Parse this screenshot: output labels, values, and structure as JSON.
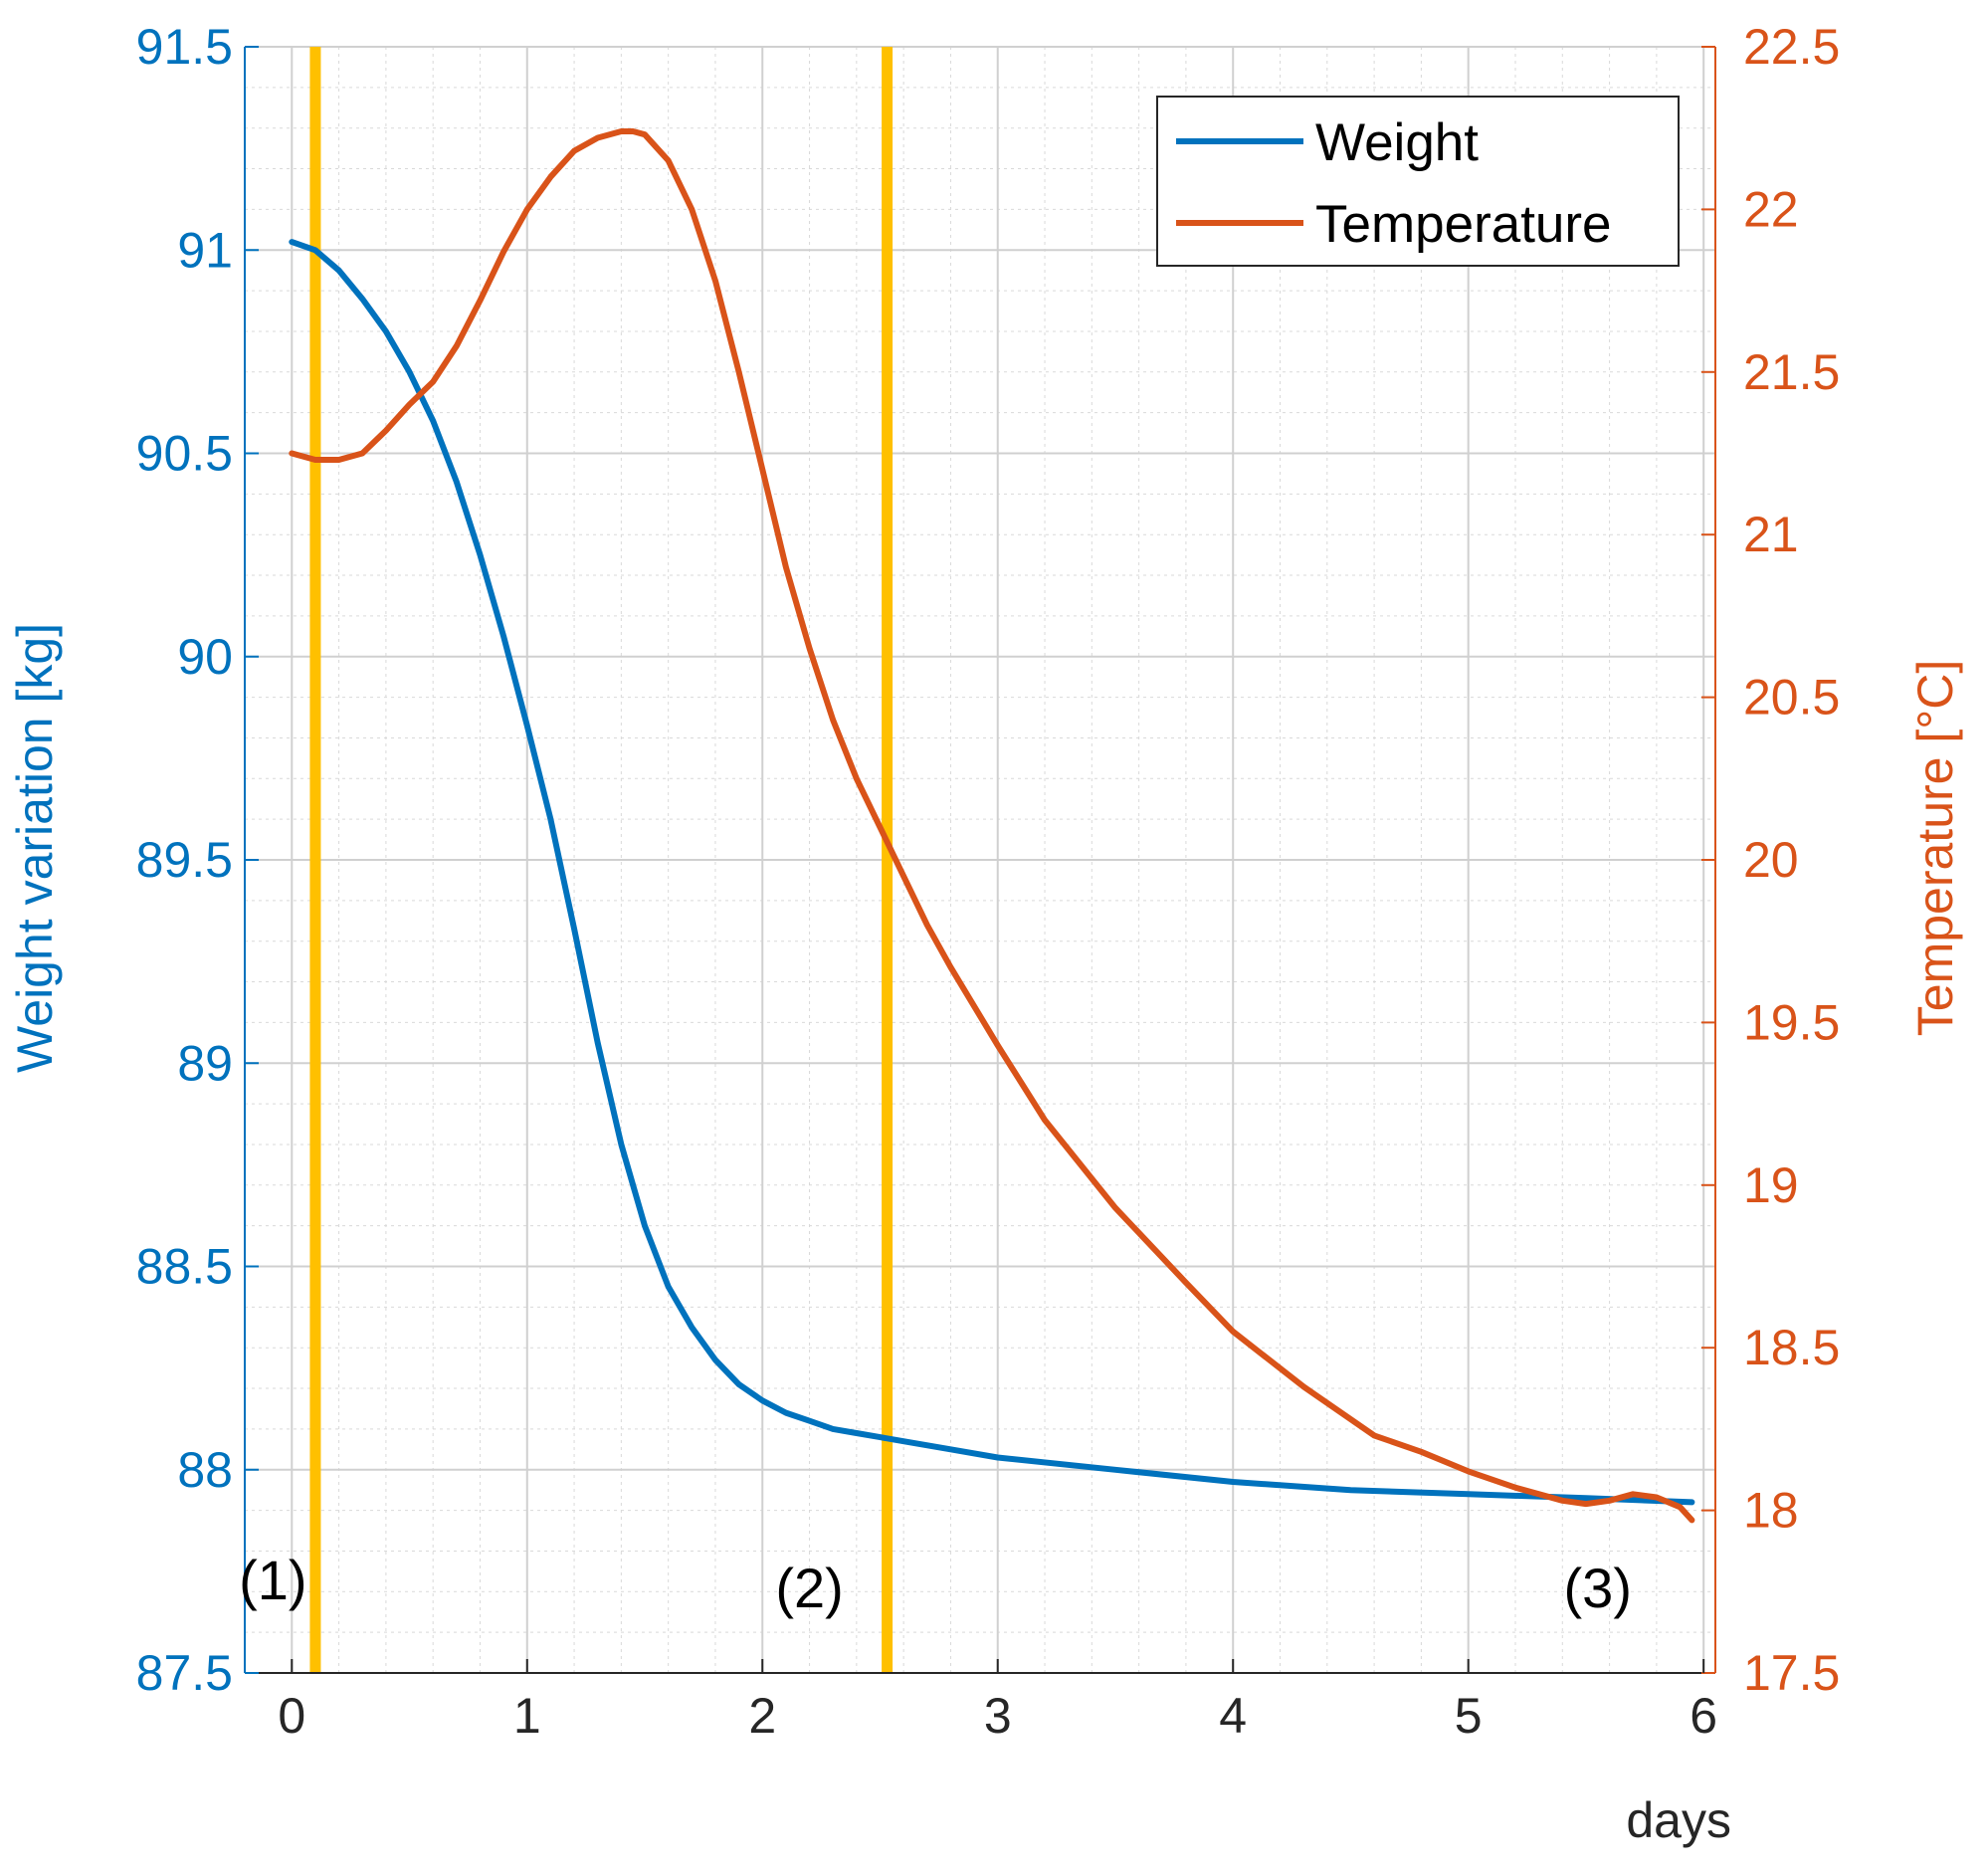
{
  "chart_data": {
    "type": "line",
    "title": "",
    "xlabel": "days",
    "xlim": [
      -0.2,
      6.05
    ],
    "xticks": [
      0,
      1,
      2,
      3,
      4,
      5,
      6
    ],
    "grid": true,
    "y_left": {
      "label": "Weight variation [kg]",
      "lim": [
        87.5,
        91.5
      ],
      "ticks": [
        87.5,
        88,
        88.5,
        89,
        89.5,
        90,
        90.5,
        91,
        91.5
      ],
      "tick_labels": [
        "87.5",
        "88",
        "88.5",
        "89",
        "89.5",
        "90",
        "90.5",
        "91",
        "91.5"
      ],
      "color": "#0072BD"
    },
    "y_right": {
      "label": "Temperature [°C]",
      "lim": [
        17.5,
        22.5
      ],
      "ticks": [
        17.5,
        18,
        18.5,
        19,
        19.5,
        20,
        20.5,
        21,
        21.5,
        22,
        22.5
      ],
      "tick_labels": [
        "17.5",
        "18",
        "18.5",
        "19",
        "19.5",
        "20",
        "20.5",
        "21",
        "21.5",
        "22",
        "22.5"
      ],
      "color": "#D95319"
    },
    "series": [
      {
        "name": "Weight",
        "axis": "left",
        "color": "#0072BD",
        "x": [
          0,
          0.1,
          0.2,
          0.3,
          0.4,
          0.5,
          0.6,
          0.7,
          0.8,
          0.9,
          1.0,
          1.1,
          1.2,
          1.3,
          1.4,
          1.5,
          1.6,
          1.7,
          1.8,
          1.9,
          2.0,
          2.1,
          2.2,
          2.3,
          2.4,
          2.5,
          2.6,
          2.8,
          3.0,
          3.5,
          4.0,
          4.5,
          5.0,
          5.5,
          5.95
        ],
        "y": [
          91.02,
          91.0,
          90.95,
          90.88,
          90.8,
          90.7,
          90.58,
          90.43,
          90.25,
          90.05,
          89.83,
          89.6,
          89.33,
          89.05,
          88.8,
          88.6,
          88.45,
          88.35,
          88.27,
          88.21,
          88.17,
          88.14,
          88.12,
          88.1,
          88.09,
          88.08,
          88.07,
          88.05,
          88.03,
          88.0,
          87.97,
          87.95,
          87.94,
          87.93,
          87.92
        ]
      },
      {
        "name": "Temperature",
        "axis": "right",
        "color": "#D95319",
        "x": [
          0,
          0.1,
          0.2,
          0.3,
          0.4,
          0.5,
          0.6,
          0.7,
          0.8,
          0.9,
          1.0,
          1.1,
          1.2,
          1.3,
          1.4,
          1.45,
          1.5,
          1.6,
          1.7,
          1.8,
          1.9,
          2.0,
          2.1,
          2.2,
          2.3,
          2.4,
          2.5,
          2.6,
          2.7,
          2.8,
          3.0,
          3.2,
          3.5,
          3.8,
          4.0,
          4.3,
          4.6,
          4.8,
          5.0,
          5.2,
          5.4,
          5.5,
          5.6,
          5.7,
          5.8,
          5.9,
          5.95
        ],
        "y": [
          21.25,
          21.23,
          21.23,
          21.25,
          21.32,
          21.4,
          21.47,
          21.58,
          21.72,
          21.87,
          22.0,
          22.1,
          22.18,
          22.22,
          22.24,
          22.24,
          22.23,
          22.15,
          22.0,
          21.78,
          21.5,
          21.2,
          20.9,
          20.65,
          20.43,
          20.25,
          20.1,
          19.95,
          19.8,
          19.67,
          19.43,
          19.2,
          18.93,
          18.7,
          18.55,
          18.38,
          18.23,
          18.18,
          18.12,
          18.07,
          18.03,
          18.02,
          18.03,
          18.05,
          18.04,
          18.01,
          17.97
        ]
      }
    ],
    "vertical_markers": [
      {
        "x": 0.1,
        "color": "#FFC000"
      },
      {
        "x": 2.53,
        "color": "#FFC000"
      }
    ],
    "annotations": [
      {
        "text": "(1)",
        "x": -0.08,
        "y": 87.73
      },
      {
        "text": "(2)",
        "x": 2.2,
        "y": 87.71
      },
      {
        "text": "(3)",
        "x": 5.55,
        "y": 87.71
      }
    ],
    "legend": {
      "position": "top-right",
      "entries": [
        "Weight",
        "Temperature"
      ]
    }
  }
}
